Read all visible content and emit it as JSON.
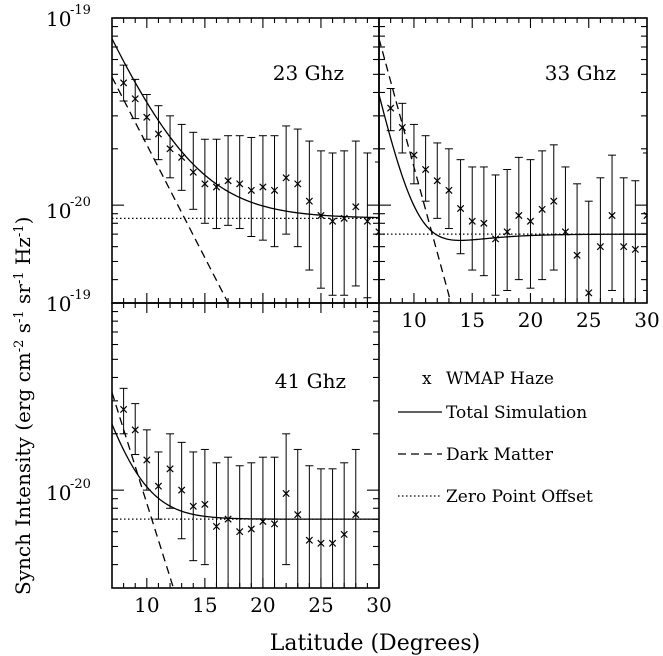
{
  "chart_data": {
    "type": "scatter",
    "yscale": "log",
    "ylabel": "Synch Intensity (erg cm^-2 s^-1 sr^-1 Hz^-1)",
    "xlabel": "Latitude (Degrees)",
    "xlim": [
      7,
      30
    ],
    "ylim": [
      3e-21,
      1e-19
    ],
    "y_tick_labels": {
      "top": "10",
      "top_exp": "-19",
      "mid": "10",
      "mid_exp": "-20",
      "bottom": "10",
      "bottom_exp": "-19"
    },
    "x_tick_labels": [
      "10",
      "15",
      "20",
      "25",
      "30"
    ],
    "legend": {
      "placement": "lower-right",
      "entries": [
        {
          "marker": "x",
          "label": "WMAP Haze"
        },
        {
          "line": "solid",
          "label": "Total Simulation"
        },
        {
          "line": "dashed",
          "label": "Dark Matter"
        },
        {
          "line": "dotted",
          "label": "Zero Point Offset"
        }
      ]
    },
    "panels": [
      {
        "id": "p23",
        "title": "23 Ghz",
        "haze": [
          [
            8,
            4.5e-20,
            3.6e-20,
            5.6e-20
          ],
          [
            9,
            3.7e-20,
            2.9e-20,
            4.7e-20
          ],
          [
            10,
            2.95e-20,
            2.25e-20,
            3.9e-20
          ],
          [
            11,
            2.4e-20,
            1.75e-20,
            3.4e-20
          ],
          [
            12,
            2e-20,
            1.4e-20,
            3e-20
          ],
          [
            13,
            1.8e-20,
            1.2e-20,
            2.7e-20
          ],
          [
            14,
            1.5e-20,
            9.5e-21,
            2.45e-20
          ],
          [
            15,
            1.3e-20,
            8e-21,
            2.25e-20
          ],
          [
            16,
            1.25e-20,
            7.5e-21,
            2.25e-20
          ],
          [
            17,
            1.35e-20,
            7.8e-21,
            2.35e-20
          ],
          [
            18,
            1.3e-20,
            7.5e-21,
            2.35e-20
          ],
          [
            19,
            1.2e-20,
            6.8e-21,
            2.3e-20
          ],
          [
            20,
            1.25e-20,
            6.5e-21,
            2.35e-20
          ],
          [
            21,
            1.2e-20,
            6e-21,
            2.35e-20
          ],
          [
            22,
            1.4e-20,
            7e-21,
            2.65e-20
          ],
          [
            23,
            1.3e-20,
            6e-21,
            2.55e-20
          ],
          [
            24,
            1.05e-20,
            4.5e-21,
            2.2e-20
          ],
          [
            25,
            8.8e-21,
            3.6e-21,
            1.95e-20
          ],
          [
            26,
            8.2e-21,
            3.3e-21,
            1.9e-20
          ],
          [
            27,
            8.5e-21,
            3.3e-21,
            1.95e-20
          ],
          [
            28,
            9.8e-21,
            3.7e-21,
            2.2e-20
          ],
          [
            29,
            8.2e-21,
            3.2e-21,
            1.9e-20
          ],
          [
            30,
            7.2e-21,
            3e-21,
            1.7e-20
          ]
        ],
        "dm_at_10": 2.1e-20,
        "dm_scale": 3.6,
        "offset": 8.5e-21,
        "curve_start": 7.75e-20
      },
      {
        "id": "p33",
        "title": "33 Ghz",
        "haze": [
          [
            8,
            3.3e-20,
            2.5e-20,
            4.2e-20
          ],
          [
            9,
            2.6e-20,
            1.9e-20,
            3.5e-20
          ],
          [
            10,
            1.85e-20,
            1.3e-20,
            2.7e-20
          ],
          [
            11,
            1.55e-20,
            1.05e-20,
            2.35e-20
          ],
          [
            12,
            1.35e-20,
            8.5e-21,
            2.15e-20
          ],
          [
            13,
            1.2e-20,
            7.5e-21,
            2e-20
          ],
          [
            14,
            9.6e-21,
            5.5e-21,
            1.75e-20
          ],
          [
            15,
            8.2e-21,
            4.5e-21,
            1.6e-20
          ],
          [
            16,
            8e-21,
            4.2e-21,
            1.6e-20
          ],
          [
            17,
            6.6e-21,
            3.3e-21,
            1.45e-20
          ],
          [
            18,
            7.2e-21,
            3.5e-21,
            1.55e-20
          ],
          [
            19,
            8.8e-21,
            4e-21,
            1.8e-20
          ],
          [
            20,
            8.2e-21,
            3.6e-21,
            1.75e-20
          ],
          [
            21,
            9.5e-21,
            4e-21,
            1.95e-20
          ],
          [
            22,
            1.05e-20,
            4.5e-21,
            2.1e-20
          ],
          [
            23,
            7.2e-21,
            3e-21,
            1.6e-20
          ],
          [
            24,
            5.4e-21,
            2.8e-21,
            1.3e-20
          ],
          [
            25,
            3.4e-21,
            2.8e-21,
            1.05e-20
          ],
          [
            26,
            6e-21,
            2.8e-21,
            1.4e-20
          ],
          [
            27,
            8.8e-21,
            3.5e-21,
            1.85e-20
          ],
          [
            28,
            6e-21,
            2.8e-21,
            1.4e-20
          ],
          [
            29,
            5.8e-21,
            2.8e-21,
            1.35e-20
          ],
          [
            30,
            8.8e-21,
            3.5e-21,
            1.9e-20
          ]
        ],
        "dm_at_10": 1.6e-20,
        "dm_scale": 1.9,
        "offset": 7e-21,
        "curve_start": 3.9e-20
      },
      {
        "id": "p41",
        "title": "41 Ghz",
        "haze": [
          [
            8,
            2.7e-20,
            2e-20,
            3.5e-20
          ],
          [
            9,
            2.1e-20,
            1.55e-20,
            2.9e-20
          ],
          [
            10,
            1.45e-20,
            1e-20,
            2.1e-20
          ],
          [
            11,
            1.05e-20,
            7e-21,
            1.6e-20
          ],
          [
            12,
            1.3e-20,
            8e-21,
            2e-20
          ],
          [
            13,
            1e-20,
            5.5e-21,
            1.8e-20
          ],
          [
            14,
            8.2e-21,
            4.2e-21,
            1.6e-20
          ],
          [
            15,
            8.4e-21,
            4e-21,
            1.65e-20
          ],
          [
            16,
            6.4e-21,
            3e-21,
            1.4e-20
          ],
          [
            17,
            7e-21,
            3e-21,
            1.5e-20
          ],
          [
            18,
            6e-21,
            2.8e-21,
            1.35e-20
          ],
          [
            19,
            6.2e-21,
            2.8e-21,
            1.4e-20
          ],
          [
            20,
            6.8e-21,
            3e-21,
            1.5e-20
          ],
          [
            21,
            6.6e-21,
            2.8e-21,
            1.5e-20
          ],
          [
            22,
            9.6e-21,
            4e-21,
            2e-20
          ],
          [
            23,
            7.4e-21,
            3e-21,
            1.65e-20
          ],
          [
            24,
            5.4e-21,
            2.8e-21,
            1.35e-20
          ],
          [
            25,
            5.2e-21,
            2.8e-21,
            1.3e-20
          ],
          [
            26,
            5.2e-21,
            2.8e-21,
            1.3e-20
          ],
          [
            27,
            5.8e-21,
            2.8e-21,
            1.4e-20
          ],
          [
            28,
            7.4e-21,
            3e-21,
            1.65e-20
          ]
        ],
        "dm_at_10": 8.5e-21,
        "dm_scale": 2.2,
        "offset": 7e-21,
        "curve_start": 2.25e-20
      }
    ]
  }
}
